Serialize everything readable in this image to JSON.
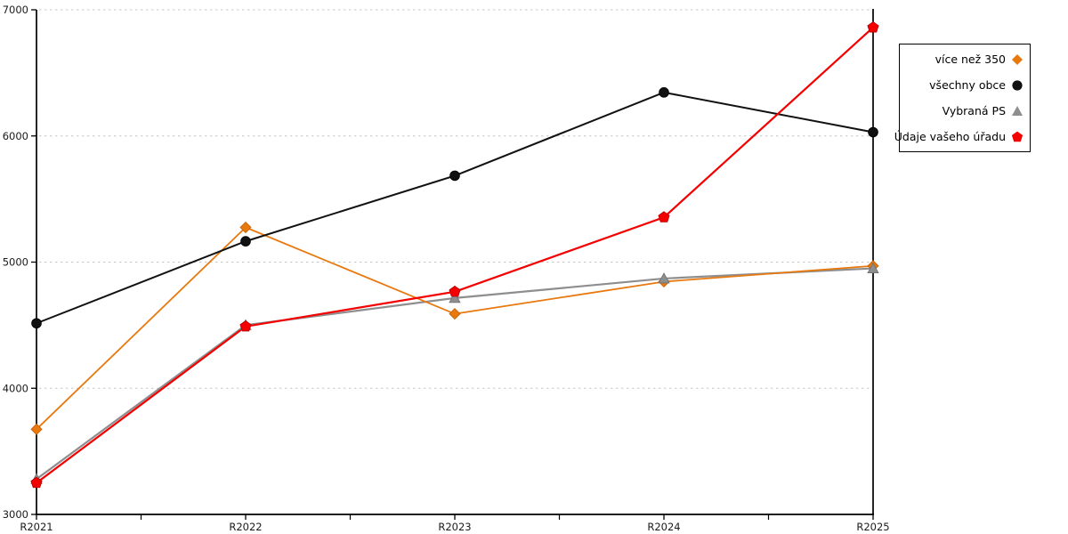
{
  "chart_data": {
    "type": "line",
    "title": "",
    "xlabel": "",
    "ylabel": "",
    "categories": [
      "R2021",
      "R2022",
      "R2023",
      "R2024",
      "R2025"
    ],
    "series": [
      {
        "name": "více než 350",
        "marker": "diamond",
        "color": "#E8790F",
        "edge_color": "#C05E00",
        "line_width": 1.8,
        "values": [
          3675,
          5275,
          4590,
          4845,
          4970
        ]
      },
      {
        "name": "všechny obce",
        "marker": "circle",
        "color": "#111111",
        "edge_color": "#000000",
        "line_width": 2.0,
        "values": [
          4515,
          5165,
          5685,
          6345,
          6030
        ]
      },
      {
        "name": "Vybraná PS",
        "marker": "triangle",
        "color": "#8E8E8E",
        "edge_color": "#6F6F6F",
        "line_width": 2.2,
        "values": [
          3280,
          4500,
          4715,
          4870,
          4950
        ]
      },
      {
        "name": "Údaje vašeho úřadu",
        "marker": "pentagon",
        "color": "#F40000",
        "edge_color": "#B00000",
        "line_width": 2.2,
        "values": [
          3250,
          4490,
          4765,
          5355,
          6860
        ]
      }
    ],
    "ylim": [
      3000,
      7000
    ],
    "yticks": [
      3000,
      4000,
      5000,
      6000,
      7000
    ],
    "grid": "horizontal dashed, light gray",
    "grid_color": "#C6C6C6",
    "axis_color": "#000000",
    "legend_position": "outside right"
  }
}
